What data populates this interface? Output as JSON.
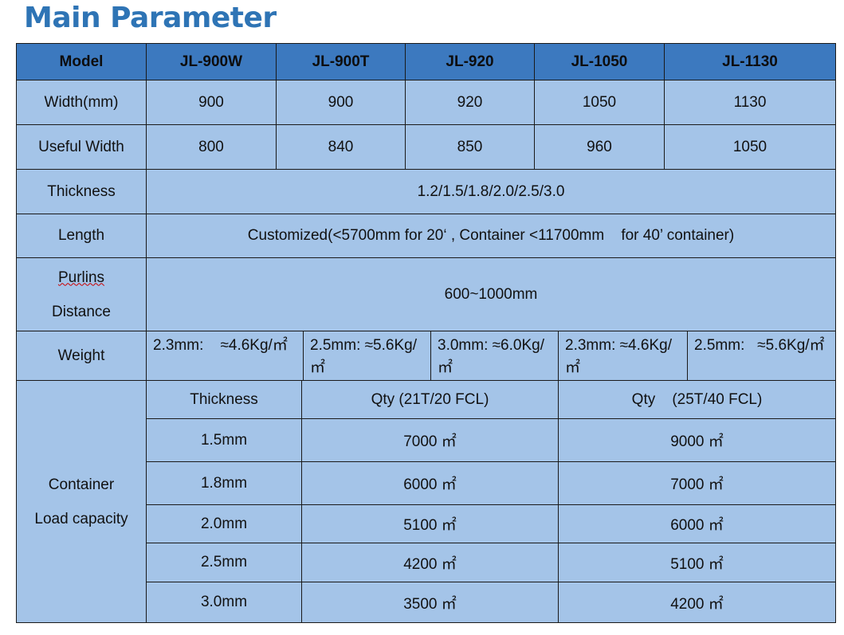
{
  "title": "Main Parameter",
  "header": [
    "Model",
    "JL-900W",
    "JL-900T",
    "JL-920",
    "JL-1050",
    "JL-1130"
  ],
  "width": {
    "label": "Width(mm)",
    "values": [
      "900",
      "900",
      "920",
      "1050",
      "1130"
    ]
  },
  "useful_width": {
    "label": "Useful Width",
    "values": [
      "800",
      "840",
      "850",
      "960",
      "1050"
    ]
  },
  "thickness": {
    "label": "Thickness",
    "value": "1.2/1.5/1.8/2.0/2.5/3.0"
  },
  "length": {
    "label": "Length",
    "value": "Customized(<5700mm for 20‘ , Container <11700mm    for 40’ container)"
  },
  "purlins": {
    "label_line1": "Purlins",
    "label_line2": "Distance",
    "value": "600~1000mm"
  },
  "weight": {
    "label": "Weight",
    "values": [
      "2.3mm:    ≈4.6Kg/㎡",
      "2.5mm: ≈5.6Kg/㎡",
      "3.0mm: ≈6.0Kg/㎡",
      "2.3mm: ≈4.6Kg/㎡",
      "2.5mm:   ≈5.6Kg/㎡"
    ]
  },
  "container": {
    "label_line1": "Container",
    "label_line2": "Load capacity",
    "headers": [
      "Thickness",
      "Qty (21T/20 FCL)",
      "Qty    (25T/40 FCL)"
    ],
    "rows": [
      [
        "1.5mm",
        "7000 ㎡",
        "9000 ㎡"
      ],
      [
        "1.8mm",
        "6000 ㎡",
        "7000 ㎡"
      ],
      [
        "2.0mm",
        "5100 ㎡",
        "6000 ㎡"
      ],
      [
        "2.5mm",
        "4200 ㎡",
        "5100 ㎡"
      ],
      [
        "3.0mm",
        "3500 ㎡",
        "4200 ㎡"
      ]
    ]
  },
  "colors": {
    "title": "#2e74b5",
    "header_bg": "#3c79bf",
    "cell_bg": "#a4c4e8"
  }
}
